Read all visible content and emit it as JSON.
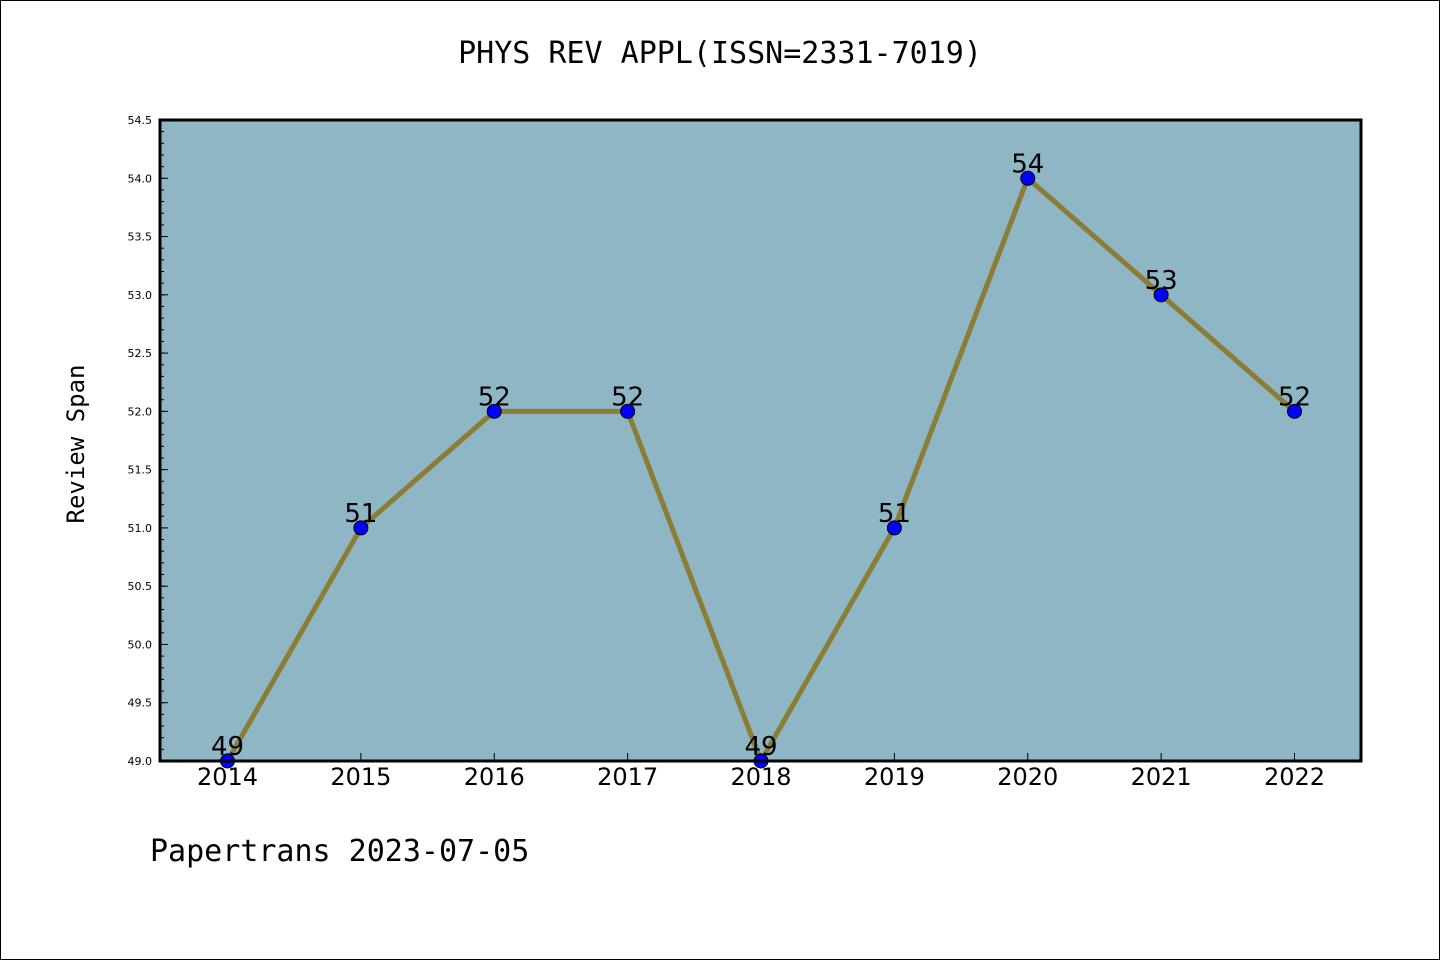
{
  "chart_data": {
    "type": "line",
    "title": "PHYS REV APPL(ISSN=2331-7019)",
    "xlabel": "",
    "ylabel": "Review Span",
    "categories": [
      "2014",
      "2015",
      "2016",
      "2017",
      "2018",
      "2019",
      "2020",
      "2021",
      "2022"
    ],
    "series": [
      {
        "values": [
          49,
          51,
          52,
          52,
          49,
          51,
          54,
          53,
          52
        ],
        "data_labels": [
          "49",
          "51",
          "52",
          "52",
          "49",
          "51",
          "54",
          "53",
          "52"
        ]
      }
    ],
    "ylim": [
      49.0,
      54.5
    ],
    "yticks": [
      "49.0",
      "49.5",
      "50.0",
      "50.5",
      "51.0",
      "51.5",
      "52.0",
      "52.5",
      "53.0",
      "53.5",
      "54.0",
      "54.5"
    ],
    "grid": false,
    "legend": "none",
    "colors": {
      "plot_background": "#8fb6c5",
      "line": "#8b7d33",
      "marker": "#0000ff"
    }
  },
  "footer": "Papertrans 2023-07-05"
}
